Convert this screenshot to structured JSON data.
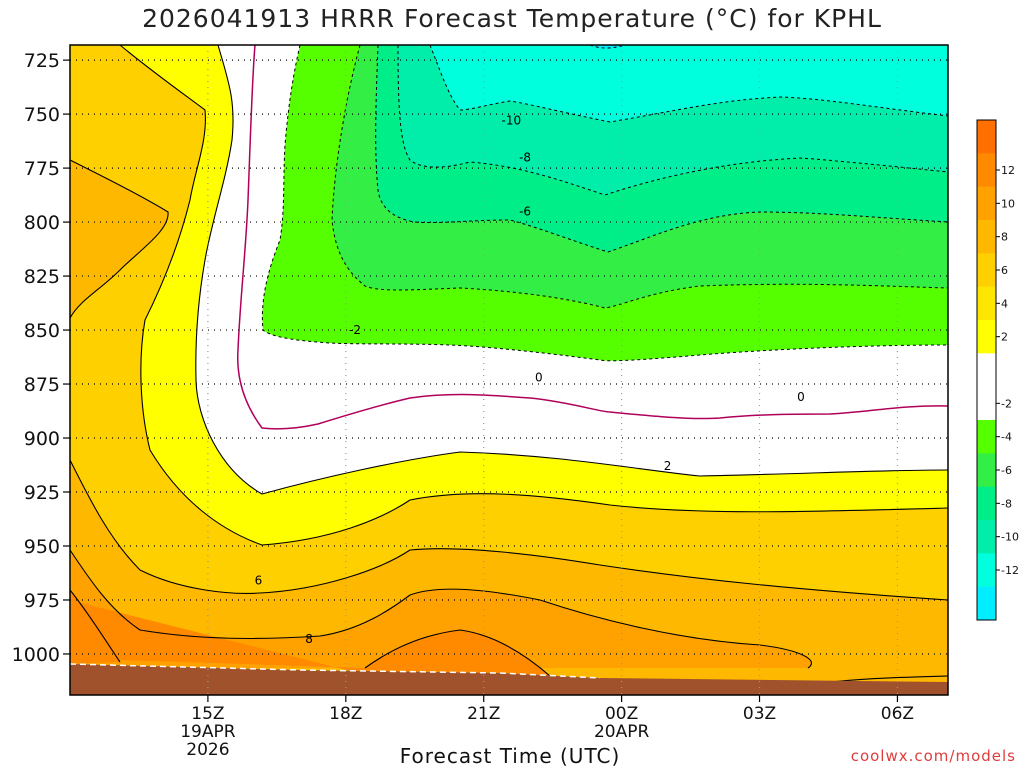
{
  "title": "2026041913 HRRR Forecast Temperature (°C) for KPHL",
  "credit": "coolwx.com/models",
  "chart_data": {
    "type": "heatmap",
    "title": "2026041913 HRRR Forecast Temperature (°C) for KPHL",
    "xlabel": "Forecast Time (UTC)",
    "ylabel": "",
    "x_unit": "hours after 12Z 19APR",
    "x_ticks": [
      {
        "value": 3,
        "lines": [
          "15Z",
          "19APR",
          "2026"
        ]
      },
      {
        "value": 6,
        "lines": [
          "18Z"
        ]
      },
      {
        "value": 9,
        "lines": [
          "21Z"
        ]
      },
      {
        "value": 12,
        "lines": [
          "00Z",
          "20APR"
        ]
      },
      {
        "value": 15,
        "lines": [
          "03Z"
        ]
      },
      {
        "value": 18,
        "lines": [
          "06Z"
        ]
      }
    ],
    "xlim": [
      0,
      19.1
    ],
    "y_ticks": [
      725,
      750,
      775,
      800,
      825,
      850,
      875,
      900,
      925,
      950,
      975,
      1000
    ],
    "ylim": [
      1019,
      718
    ],
    "y_reversed": true,
    "grid": true,
    "colorbar": {
      "labels": [
        12,
        10,
        8,
        6,
        4,
        2,
        -2,
        -4,
        -6,
        -8,
        -10,
        -12
      ],
      "bins": [
        {
          "color": "#ff7000",
          "label": ""
        },
        {
          "color": "#ff8a00",
          "label": "12"
        },
        {
          "color": "#ffa200",
          "label": "10"
        },
        {
          "color": "#ffb800",
          "label": "8"
        },
        {
          "color": "#ffd000",
          "label": "6"
        },
        {
          "color": "#ffe600",
          "label": "4"
        },
        {
          "color": "#ffff00",
          "label": "2"
        },
        {
          "color": "#ffffff",
          "label": ""
        },
        {
          "color": "#ffffff",
          "label": "-2"
        },
        {
          "color": "#55ff00",
          "label": "-4"
        },
        {
          "color": "#33ee44",
          "label": "-6"
        },
        {
          "color": "#00ee88",
          "label": "-8"
        },
        {
          "color": "#00eeaa",
          "label": "-10"
        },
        {
          "color": "#00ffdd",
          "label": "-12"
        },
        {
          "color": "#00eeff",
          "label": ""
        }
      ]
    },
    "contour_labels": [
      {
        "text": "-10",
        "x": 9.6,
        "p": 753
      },
      {
        "text": "-8",
        "x": 9.9,
        "p": 770
      },
      {
        "text": "-6",
        "x": 9.9,
        "p": 795
      },
      {
        "text": "-2",
        "x": 6.2,
        "p": 850
      },
      {
        "text": "0",
        "x": 10.2,
        "p": 872
      },
      {
        "text": "0",
        "x": 15.9,
        "p": 881
      },
      {
        "text": "2",
        "x": 13.0,
        "p": 913
      },
      {
        "text": "6",
        "x": 4.1,
        "p": 966
      },
      {
        "text": "8",
        "x": 5.2,
        "p": 993
      }
    ],
    "regions": [
      {
        "name": "temp-bin-plus-2-to-4",
        "color": "#ffff00"
      },
      {
        "name": "temp-bin-plus-4-to-6",
        "color": "#ffd000"
      },
      {
        "name": "temp-bin-plus-6-to-8",
        "color": "#ffb800"
      },
      {
        "name": "temp-bin-plus-8-to-10",
        "color": "#ffa200"
      },
      {
        "name": "temp-bin-plus-10-to-12",
        "color": "#ff8a00"
      },
      {
        "name": "temp-bin-minus-2-to-4",
        "color": "#55ff00"
      },
      {
        "name": "temp-bin-minus-4-to-6",
        "color": "#33ee44"
      },
      {
        "name": "temp-bin-minus-6-to-8",
        "color": "#00ee88"
      },
      {
        "name": "temp-bin-minus-8-to-10",
        "color": "#00eeaa"
      },
      {
        "name": "temp-bin-minus-10-to-12",
        "color": "#00ffdd"
      },
      {
        "name": "terrain",
        "color": "#a0522d"
      }
    ]
  }
}
